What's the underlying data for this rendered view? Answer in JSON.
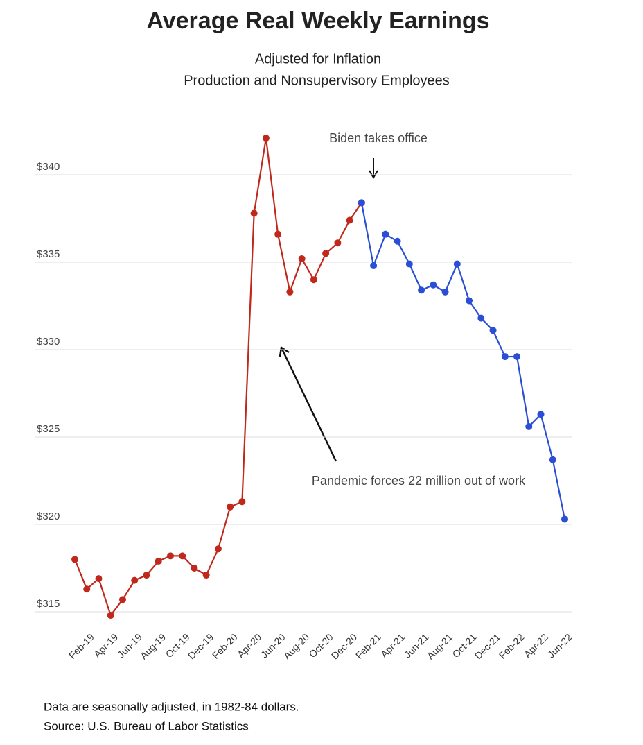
{
  "chart_data": {
    "type": "line",
    "title": "Average Real Weekly Earnings",
    "subtitle": [
      "Adjusted for Inflation",
      "Production and Nonsupervisory Employees"
    ],
    "annotations": [
      "Biden takes office",
      "Pandemic forces 22 million out of work"
    ],
    "notes": [
      "Data are seasonally adjusted,  in 1982-84 dollars.",
      "Source: U.S. Bureau of Labor Statistics"
    ],
    "categories": [
      null,
      "Feb-19",
      null,
      "Apr-19",
      null,
      "Jun-19",
      null,
      "Aug-19",
      null,
      "Oct-19",
      null,
      "Dec-19",
      null,
      "Feb-20",
      null,
      "Apr-20",
      null,
      "Jun-20",
      null,
      "Aug-20",
      null,
      "Oct-20",
      null,
      "Dec-20",
      null,
      "Feb-21",
      null,
      "Apr-21",
      null,
      "Jun-21",
      null,
      "Aug-21",
      null,
      "Oct-21",
      null,
      "Dec-21",
      null,
      "Feb-22",
      null,
      "Apr-22",
      null,
      "Jun-22"
    ],
    "series": [
      {
        "color": "#c0281c",
        "values": [
          318.0,
          316.3,
          316.9,
          314.8,
          315.7,
          316.8,
          317.1,
          317.9,
          318.2,
          318.2,
          317.5,
          317.1,
          318.6,
          321.0,
          321.3,
          337.8,
          342.1,
          336.6,
          333.3,
          335.2,
          334.0,
          335.5,
          336.1,
          337.4,
          338.4,
          null,
          null,
          null,
          null,
          null,
          null,
          null,
          null,
          null,
          null,
          null,
          null,
          null,
          null,
          null,
          null,
          null
        ]
      },
      {
        "color": "#2a4fd6",
        "values": [
          null,
          null,
          null,
          null,
          null,
          null,
          null,
          null,
          null,
          null,
          null,
          null,
          null,
          null,
          null,
          null,
          null,
          null,
          null,
          null,
          null,
          null,
          null,
          null,
          338.4,
          334.8,
          336.6,
          336.2,
          334.9,
          333.4,
          333.7,
          333.3,
          334.9,
          332.8,
          331.8,
          331.1,
          329.6,
          329.6,
          325.6,
          326.3,
          323.7,
          320.3
        ]
      }
    ],
    "ylim": [
      314.5,
      342.5
    ],
    "yticks": [
      {
        "value": 315,
        "label": "$315"
      },
      {
        "value": 320,
        "label": "$320"
      },
      {
        "value": 325,
        "label": "$325"
      },
      {
        "value": 330,
        "label": "$330"
      },
      {
        "value": 335,
        "label": "$335"
      },
      {
        "value": 340,
        "label": "$340"
      }
    ],
    "grid": true
  }
}
